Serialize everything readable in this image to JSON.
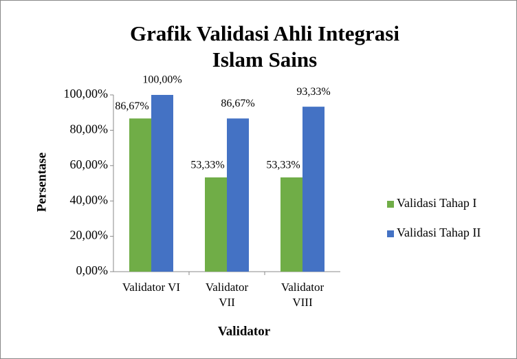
{
  "chart_data": {
    "type": "bar",
    "title": "Grafik Validasi Ahli Integrasi Islam Sains",
    "x_label": "Validator",
    "y_label": "Persentase",
    "categories": [
      "Validator VI",
      "Validator VII",
      "Validator VIII"
    ],
    "series": [
      {
        "name": "Validasi Tahap I",
        "color": "#70ad47",
        "values": [
          86.67,
          53.33,
          53.33
        ],
        "value_labels": [
          "86,67%",
          "53,33%",
          "53,33%"
        ]
      },
      {
        "name": "Validasi Tahap II",
        "color": "#4472c4",
        "values": [
          100,
          86.67,
          93.33
        ],
        "value_labels": [
          "100,00%",
          "86,67%",
          "93,33%"
        ]
      }
    ],
    "ylim": [
      0,
      100
    ],
    "yticks": [
      {
        "value": 0,
        "label": "0,00%"
      },
      {
        "value": 20,
        "label": "20,00%"
      },
      {
        "value": 40,
        "label": "40,00%"
      },
      {
        "value": 60,
        "label": "60,00%"
      },
      {
        "value": 80,
        "label": "80,00%"
      },
      {
        "value": 100,
        "label": "100,00%"
      }
    ],
    "legend": "right"
  }
}
